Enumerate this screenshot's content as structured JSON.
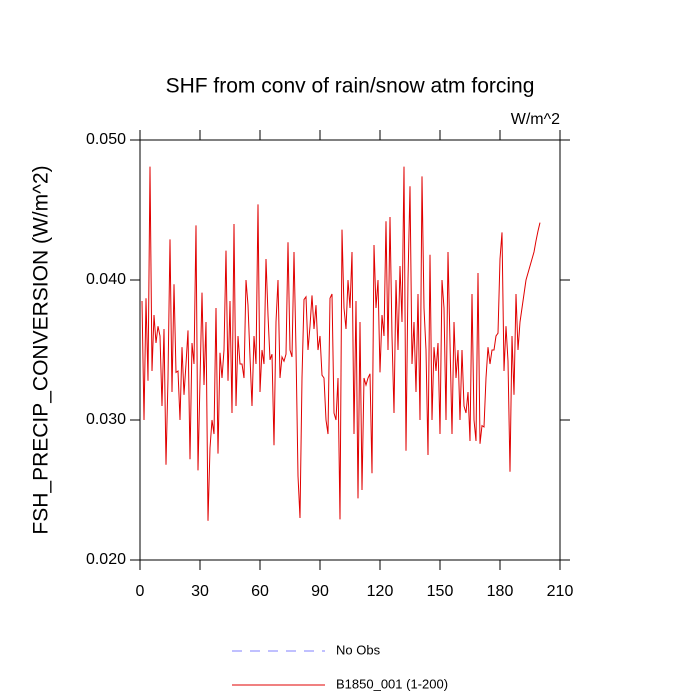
{
  "chart_data": {
    "type": "line",
    "title": "SHF from conv of rain/snow atm forcing",
    "units": "W/m^2",
    "y_label": "FSH_PRECIP_CONVERSION  (W/m^2)",
    "xlim": [
      0,
      210
    ],
    "xticks": [
      0,
      30,
      60,
      90,
      120,
      150,
      180,
      210
    ],
    "ylim": [
      0.02,
      0.05
    ],
    "yticks": [
      {
        "value": 0.02,
        "label": "0.020"
      },
      {
        "value": 0.03,
        "label": "0.030"
      },
      {
        "value": 0.04,
        "label": "0.040"
      },
      {
        "value": 0.05,
        "label": "0.050"
      }
    ],
    "legend_only": {
      "name": "No Obs",
      "color": "#8080ff",
      "dashed": true
    },
    "x": [
      1,
      2,
      3,
      4,
      5,
      6,
      7,
      8,
      9,
      10,
      11,
      12,
      13,
      14,
      15,
      16,
      17,
      18,
      19,
      20,
      21,
      22,
      23,
      24,
      25,
      26,
      27,
      28,
      29,
      30,
      31,
      32,
      33,
      34,
      35,
      36,
      37,
      38,
      39,
      40,
      41,
      42,
      43,
      44,
      45,
      46,
      47,
      48,
      49,
      50,
      51,
      52,
      53,
      54,
      55,
      56,
      57,
      58,
      59,
      60,
      61,
      62,
      63,
      64,
      65,
      66,
      67,
      68,
      69,
      70,
      71,
      72,
      73,
      74,
      75,
      76,
      77,
      78,
      79,
      80,
      81,
      82,
      83,
      84,
      85,
      86,
      87,
      88,
      89,
      90,
      91,
      92,
      93,
      94,
      95,
      96,
      97,
      98,
      99,
      100,
      101,
      102,
      103,
      104,
      105,
      106,
      107,
      108,
      109,
      110,
      111,
      112,
      113,
      114,
      115,
      116,
      117,
      118,
      119,
      120,
      121,
      122,
      123,
      124,
      125,
      126,
      127,
      128,
      129,
      130,
      131,
      132,
      133,
      134,
      135,
      136,
      137,
      138,
      139,
      140,
      141,
      142,
      143,
      144,
      145,
      146,
      147,
      148,
      149,
      150,
      151,
      152,
      153,
      154,
      155,
      156,
      157,
      158,
      159,
      160,
      161,
      162,
      163,
      164,
      165,
      166,
      167,
      168,
      169,
      170,
      171,
      172,
      173,
      174,
      175,
      176,
      177,
      178,
      179,
      180,
      181,
      182,
      183,
      184,
      185,
      186,
      187,
      188,
      189,
      190,
      191,
      192,
      193,
      194,
      195,
      196,
      197,
      198,
      199,
      200
    ],
    "series": [
      {
        "name": "B1850_001 (1-200)",
        "color": "#e00000",
        "values": [
          0.0385,
          0.03,
          0.0387,
          0.0328,
          0.0481,
          0.0335,
          0.0375,
          0.0355,
          0.0367,
          0.036,
          0.031,
          0.0365,
          0.0268,
          0.033,
          0.0429,
          0.032,
          0.0397,
          0.0334,
          0.0335,
          0.03,
          0.0352,
          0.0318,
          0.034,
          0.0364,
          0.0272,
          0.0355,
          0.034,
          0.0439,
          0.0264,
          0.0328,
          0.0391,
          0.0325,
          0.037,
          0.0228,
          0.028,
          0.03,
          0.029,
          0.038,
          0.0276,
          0.0348,
          0.033,
          0.035,
          0.0421,
          0.0328,
          0.0385,
          0.0305,
          0.044,
          0.031,
          0.036,
          0.034,
          0.034,
          0.033,
          0.04,
          0.0382,
          0.0345,
          0.031,
          0.036,
          0.034,
          0.0454,
          0.032,
          0.035,
          0.034,
          0.0415,
          0.0375,
          0.0343,
          0.0347,
          0.0282,
          0.037,
          0.04,
          0.033,
          0.0345,
          0.0342,
          0.0347,
          0.0427,
          0.035,
          0.0345,
          0.042,
          0.035,
          0.026,
          0.023,
          0.033,
          0.0386,
          0.0388,
          0.035,
          0.0367,
          0.0389,
          0.0365,
          0.0382,
          0.035,
          0.036,
          0.0332,
          0.033,
          0.03,
          0.029,
          0.0387,
          0.039,
          0.0305,
          0.03,
          0.033,
          0.0229,
          0.0436,
          0.038,
          0.0365,
          0.04,
          0.038,
          0.042,
          0.029,
          0.0385,
          0.0244,
          0.037,
          0.025,
          0.033,
          0.0325,
          0.033,
          0.0333,
          0.0262,
          0.0425,
          0.038,
          0.04,
          0.0334,
          0.0375,
          0.036,
          0.0442,
          0.035,
          0.0445,
          0.036,
          0.0305,
          0.04,
          0.035,
          0.041,
          0.037,
          0.0481,
          0.0278,
          0.04,
          0.0467,
          0.034,
          0.037,
          0.032,
          0.039,
          0.03,
          0.0474,
          0.038,
          0.035,
          0.0275,
          0.0418,
          0.03,
          0.0352,
          0.0335,
          0.0355,
          0.029,
          0.04,
          0.038,
          0.03,
          0.042,
          0.0355,
          0.029,
          0.037,
          0.033,
          0.035,
          0.03,
          0.035,
          0.031,
          0.0305,
          0.032,
          0.0285,
          0.039,
          0.03,
          0.0285,
          0.0405,
          0.0283,
          0.0296,
          0.0295,
          0.033,
          0.0352,
          0.034,
          0.035,
          0.035,
          0.036,
          0.0362,
          0.0415,
          0.0434,
          0.0335,
          0.0367,
          0.0342,
          0.0263,
          0.036,
          0.0318,
          0.039,
          0.035,
          0.037,
          0.038,
          0.039,
          0.04,
          0.0405,
          0.041,
          0.0415,
          0.042,
          0.0428,
          0.0435,
          0.0441
        ]
      }
    ]
  }
}
